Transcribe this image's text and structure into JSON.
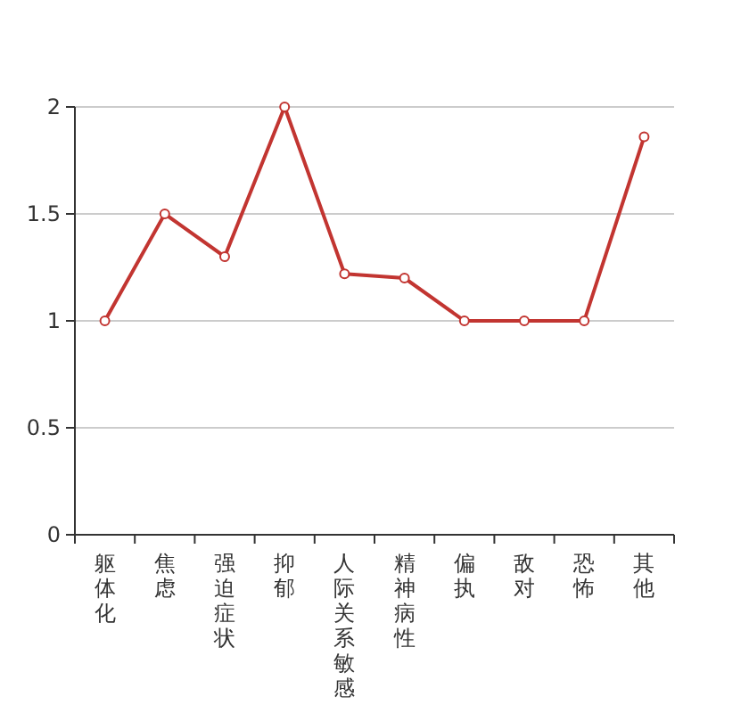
{
  "chart_data": {
    "type": "line",
    "categories": [
      "躯体化",
      "焦虑",
      "强迫症状",
      "抑郁",
      "人际关系敏感",
      "精神病性",
      "偏执",
      "敌对",
      "恐怖",
      "其他"
    ],
    "series": [
      {
        "color": "#c23531",
        "values": [
          1,
          1.5,
          1.3,
          2,
          1.22,
          1.2,
          1,
          1,
          1,
          1.86
        ]
      }
    ],
    "ylim": [
      0,
      2
    ],
    "yticks": [
      0,
      0.5,
      1,
      1.5,
      2
    ],
    "grid": "y",
    "marker": "circle",
    "line_style": "solid"
  }
}
